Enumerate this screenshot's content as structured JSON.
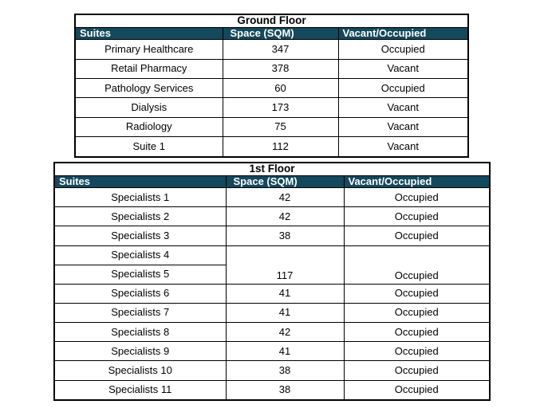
{
  "colors": {
    "page_bg": "#ffffff",
    "header_bg": "#14485C",
    "header_text": "#ffffff",
    "body_text": "#000000",
    "border": "#000000"
  },
  "tables": [
    {
      "title": "Ground Floor",
      "columns": [
        "Suites",
        "Space (SQM)",
        "Vacant/Occupied"
      ],
      "rows": [
        {
          "suite": "Primary Healthcare",
          "space": "347",
          "status": "Occupied"
        },
        {
          "suite": "Retail Pharmacy",
          "space": "378",
          "status": "Vacant"
        },
        {
          "suite": "Pathology Services",
          "space": "60",
          "status": "Occupied"
        },
        {
          "suite": "Dialysis",
          "space": "173",
          "status": "Vacant"
        },
        {
          "suite": "Radiology",
          "space": "75",
          "status": "Vacant"
        },
        {
          "suite": "Suite 1",
          "space": "112",
          "status": "Vacant"
        }
      ],
      "merges": []
    },
    {
      "title": "1st Floor",
      "columns": [
        "Suites",
        "Space (SQM)",
        "Vacant/Occupied"
      ],
      "rows": [
        {
          "suite": "Specialists 1",
          "space": "42",
          "status": "Occupied"
        },
        {
          "suite": "Specialists 2",
          "space": "42",
          "status": "Occupied"
        },
        {
          "suite": "Specialists 3",
          "space": "38",
          "status": "Occupied"
        },
        {
          "suite": "Specialists 4",
          "space": null,
          "status": null
        },
        {
          "suite": "Specialists 5",
          "space": "117",
          "status": "Occupied"
        },
        {
          "suite": "Specialists 6",
          "space": "41",
          "status": "Occupied"
        },
        {
          "suite": "Specialists 7",
          "space": "41",
          "status": "Occupied"
        },
        {
          "suite": "Specialists 8",
          "space": "42",
          "status": "Occupied"
        },
        {
          "suite": "Specialists 9",
          "space": "41",
          "status": "Occupied"
        },
        {
          "suite": "Specialists 10",
          "space": "38",
          "status": "Occupied"
        },
        {
          "suite": "Specialists 11",
          "space": "38",
          "status": "Occupied"
        }
      ],
      "merges": [
        {
          "col": "space",
          "start": 3,
          "end": 4,
          "value_row": 4
        },
        {
          "col": "status",
          "start": 3,
          "end": 4,
          "value_row": 4
        }
      ]
    }
  ]
}
